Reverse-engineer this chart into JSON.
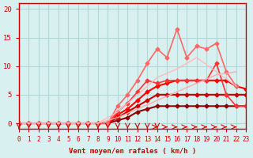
{
  "title": "",
  "xlabel": "Vent moyen/en rafales ( km/h )",
  "ylabel": "",
  "xlim": [
    0,
    23
  ],
  "ylim": [
    -1,
    21
  ],
  "yticks": [
    0,
    5,
    10,
    15,
    20
  ],
  "xticks": [
    0,
    1,
    2,
    3,
    4,
    5,
    6,
    7,
    8,
    9,
    10,
    11,
    12,
    13,
    14,
    15,
    16,
    17,
    18,
    19,
    20,
    21,
    22,
    23
  ],
  "bg_color": "#d8f0f0",
  "grid_color": "#b0d8d8",
  "axis_color": "#cc0000",
  "series": [
    {
      "x": [
        0,
        1,
        2,
        3,
        4,
        5,
        6,
        7,
        8,
        9,
        10,
        11,
        12,
        13,
        14,
        15,
        16,
        17,
        18,
        19,
        20,
        21,
        22,
        23
      ],
      "y": [
        0,
        0,
        0,
        0,
        0,
        0,
        0,
        0,
        0,
        0,
        0.5,
        1,
        2,
        2.5,
        3,
        3,
        3,
        3,
        3,
        3,
        3,
        3,
        3,
        3
      ],
      "color": "#8b0000",
      "lw": 1.5,
      "marker": "D",
      "ms": 2.5
    },
    {
      "x": [
        0,
        1,
        2,
        3,
        4,
        5,
        6,
        7,
        8,
        9,
        10,
        11,
        12,
        13,
        14,
        15,
        16,
        17,
        18,
        19,
        20,
        21,
        22,
        23
      ],
      "y": [
        0,
        0,
        0,
        0,
        0,
        0,
        0,
        0,
        0,
        0,
        1,
        2,
        3,
        4,
        5,
        5,
        5,
        5,
        5,
        5,
        5,
        5,
        5,
        5
      ],
      "color": "#cc0000",
      "lw": 1.5,
      "marker": "D",
      "ms": 2.5
    },
    {
      "x": [
        0,
        1,
        2,
        3,
        4,
        5,
        6,
        7,
        8,
        9,
        10,
        11,
        12,
        13,
        14,
        15,
        16,
        17,
        18,
        19,
        20,
        21,
        22,
        23
      ],
      "y": [
        0,
        0,
        0,
        0,
        0,
        0,
        0,
        0,
        0,
        0,
        1.5,
        2.5,
        4,
        5.5,
        6.5,
        7,
        7.5,
        7.5,
        7.5,
        7.5,
        7.5,
        7.5,
        6.5,
        6
      ],
      "color": "#ff0000",
      "lw": 1.5,
      "marker": "D",
      "ms": 2.5
    },
    {
      "x": [
        0,
        1,
        2,
        3,
        4,
        5,
        6,
        7,
        8,
        9,
        10,
        11,
        12,
        13,
        14,
        15,
        16,
        17,
        18,
        19,
        20,
        21,
        22,
        23
      ],
      "y": [
        0,
        0,
        0,
        0,
        0,
        0,
        0,
        0,
        0,
        0,
        2,
        3.5,
        5.5,
        7.5,
        7,
        7.5,
        7.5,
        7.5,
        7.5,
        7.5,
        10.5,
        5,
        3,
        3
      ],
      "color": "#ff3333",
      "lw": 1.2,
      "marker": "D",
      "ms": 2.5
    },
    {
      "x": [
        0,
        1,
        2,
        3,
        4,
        5,
        6,
        7,
        8,
        9,
        10,
        11,
        12,
        13,
        14,
        15,
        16,
        17,
        18,
        19,
        20,
        21,
        22,
        23
      ],
      "y": [
        0,
        0,
        0,
        0,
        0,
        0,
        0,
        0,
        0,
        0,
        3,
        5,
        7.5,
        10.5,
        13,
        11.5,
        16.5,
        11.5,
        13.5,
        13,
        14,
        9,
        6.5,
        null
      ],
      "color": "#ff6666",
      "lw": 1.2,
      "marker": "D",
      "ms": 2.5
    },
    {
      "x": [
        0,
        2,
        4,
        6,
        8,
        10,
        12,
        14,
        16,
        18,
        20,
        22
      ],
      "y": [
        0,
        0,
        0,
        0,
        0,
        1,
        2.5,
        4,
        5.5,
        7,
        8.5,
        9
      ],
      "color": "#ffaaaa",
      "lw": 1.0,
      "marker": null,
      "ms": 0
    },
    {
      "x": [
        0,
        2,
        4,
        6,
        8,
        10,
        12,
        14,
        16,
        18,
        20,
        22
      ],
      "y": [
        0,
        0,
        0,
        0,
        0,
        2,
        5,
        8,
        9.5,
        11.5,
        9,
        6.5
      ],
      "color": "#ffbbbb",
      "lw": 1.0,
      "marker": null,
      "ms": 0
    }
  ],
  "arrows_down_x": [
    0,
    1,
    2,
    3,
    4,
    5,
    6,
    7,
    8,
    9,
    10,
    11,
    12,
    13,
    14
  ],
  "arrows_right_x": [
    14,
    15,
    16,
    17,
    18,
    19,
    20,
    21,
    22,
    23
  ]
}
